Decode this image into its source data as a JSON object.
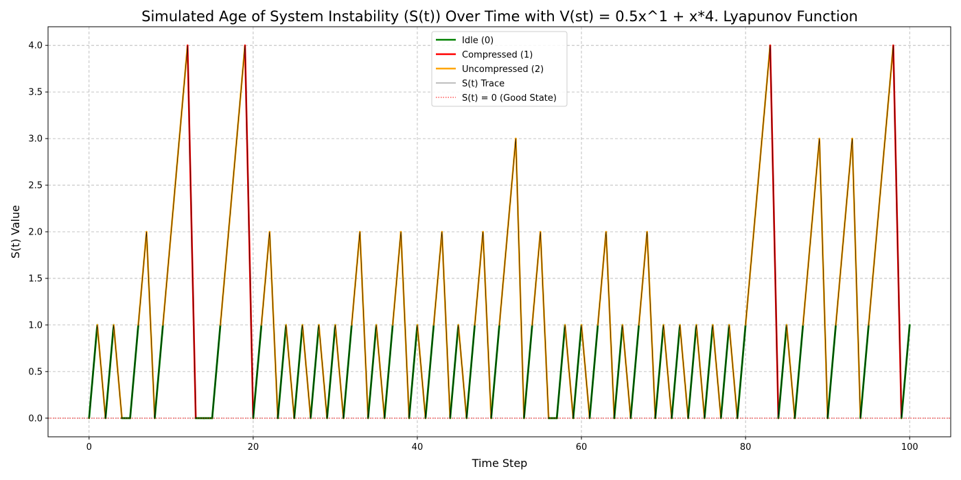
{
  "chart_data": {
    "type": "line",
    "title": "Simulated Age of System Instability (S(t)) Over Time with V(st) = 0.5x^1 + x*4. Lyapunov Function",
    "xlabel": "Time Step",
    "ylabel": "S(t) Value",
    "xlim": [
      -5,
      105
    ],
    "ylim": [
      -0.2,
      4.2
    ],
    "xticks": [
      0,
      20,
      40,
      60,
      80,
      100
    ],
    "yticks": [
      "0.0",
      "0.5",
      "1.0",
      "1.5",
      "2.0",
      "2.5",
      "3.0",
      "3.5",
      "4.0"
    ],
    "grid": true,
    "legend_position": "top-center",
    "legend": [
      {
        "label": "Idle (0)",
        "color": "#008000",
        "style": "solid-thick"
      },
      {
        "label": "Compressed (1)",
        "color": "#ff0000",
        "style": "solid-thick"
      },
      {
        "label": "Uncompressed (2)",
        "color": "#ffa500",
        "style": "solid-thick"
      },
      {
        "label": "S(t) Trace",
        "color": "#000000",
        "style": "solid-thin"
      },
      {
        "label": "S(t) = 0 (Good State)",
        "color": "#ff0000",
        "style": "dotted"
      }
    ],
    "reference_line": {
      "y": 0,
      "label": "S(t) = 0 (Good State)",
      "color": "#ff0000"
    },
    "series": [
      {
        "name": "S(t) Trace",
        "x": [
          0,
          1,
          2,
          3,
          4,
          5,
          6,
          7,
          8,
          9,
          10,
          11,
          12,
          13,
          14,
          15,
          16,
          17,
          18,
          19,
          20,
          21,
          22,
          23,
          24,
          25,
          26,
          27,
          28,
          29,
          30,
          31,
          32,
          33,
          34,
          35,
          36,
          37,
          38,
          39,
          40,
          41,
          42,
          43,
          44,
          45,
          46,
          47,
          48,
          49,
          50,
          51,
          52,
          53,
          54,
          55,
          56,
          57,
          58,
          59,
          60,
          61,
          62,
          63,
          64,
          65,
          66,
          67,
          68,
          69,
          70,
          71,
          72,
          73,
          74,
          75,
          76,
          77,
          78,
          79,
          80,
          81,
          82,
          83,
          84,
          85,
          86,
          87,
          88,
          89,
          90,
          91,
          92,
          93,
          94,
          95,
          96,
          97,
          98,
          99,
          100
        ],
        "values": [
          0,
          1,
          0,
          1,
          0,
          0,
          1,
          2,
          0,
          1,
          2,
          3,
          4,
          0,
          0,
          0,
          1,
          2,
          3,
          4,
          0,
          1,
          2,
          0,
          1,
          0,
          1,
          0,
          1,
          0,
          1,
          0,
          1,
          2,
          0,
          1,
          0,
          1,
          2,
          0,
          1,
          0,
          1,
          2,
          0,
          1,
          0,
          1,
          2,
          0,
          1,
          2,
          3,
          0,
          1,
          2,
          0,
          0,
          1,
          0,
          1,
          0,
          1,
          2,
          0,
          1,
          0,
          1,
          2,
          0,
          1,
          0,
          1,
          0,
          1,
          0,
          1,
          0,
          1,
          0,
          1,
          2,
          3,
          4,
          0,
          1,
          0,
          1,
          2,
          3,
          0,
          1,
          2,
          3,
          0,
          1,
          2,
          3,
          4,
          0,
          1
        ]
      }
    ]
  }
}
